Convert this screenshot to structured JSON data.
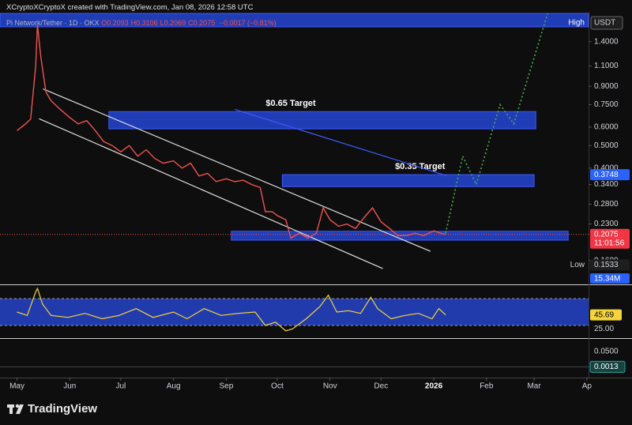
{
  "header": {
    "credit": "XCryptoXCryptoX created with TradingView.com, Jan 08, 2026 12:58 UTC",
    "symbol": "Pi Network/Tether · 1D · OKX",
    "ohlc": [
      "O0.2093",
      "H0.3106",
      "L0.2069",
      "C0.2075"
    ],
    "change": "−0.0017 (−0.81%)"
  },
  "footer": {
    "brand": "TradingView"
  },
  "chart_data": {
    "type": "line",
    "log_scale": true,
    "color": "#ef5350",
    "currency": "USDT",
    "x": [
      0,
      5,
      8,
      11,
      12,
      14,
      17,
      20,
      25,
      31,
      36,
      41,
      46,
      51,
      56,
      61,
      66,
      71,
      76,
      81,
      86,
      92,
      97,
      102,
      107,
      112,
      117,
      123,
      128,
      133,
      138,
      143,
      146,
      150,
      153,
      158,
      161,
      166,
      171,
      176,
      180,
      184,
      189,
      194,
      199,
      204,
      209,
      214,
      219,
      224,
      229,
      234,
      239,
      245,
      249,
      252
    ],
    "values": [
      0.58,
      0.62,
      0.65,
      1.1,
      1.65,
      1.2,
      0.85,
      0.78,
      0.72,
      0.66,
      0.62,
      0.64,
      0.58,
      0.52,
      0.5,
      0.47,
      0.5,
      0.45,
      0.48,
      0.44,
      0.42,
      0.43,
      0.4,
      0.42,
      0.37,
      0.38,
      0.35,
      0.36,
      0.35,
      0.355,
      0.34,
      0.33,
      0.26,
      0.26,
      0.25,
      0.24,
      0.2,
      0.21,
      0.2,
      0.21,
      0.27,
      0.24,
      0.225,
      0.23,
      0.22,
      0.245,
      0.27,
      0.235,
      0.22,
      0.205,
      0.205,
      0.21,
      0.205,
      0.215,
      0.21,
      0.2075
    ],
    "ylim": [
      0.1265,
      1.85
    ],
    "yticks": [
      {
        "value": 1.4,
        "label": "1.4000"
      },
      {
        "value": 1.1,
        "label": "1.1000"
      },
      {
        "value": 0.9,
        "label": "0.9000"
      },
      {
        "value": 0.75,
        "label": "0.7500"
      },
      {
        "value": 0.6,
        "label": "0.6000"
      },
      {
        "value": 0.5,
        "label": "0.5000"
      },
      {
        "value": 0.4,
        "label": "0.4000"
      },
      {
        "value": 0.34,
        "label": "0.3400"
      },
      {
        "value": 0.28,
        "label": "0.2800"
      },
      {
        "value": 0.23,
        "label": "0.2300"
      },
      {
        "value": 0.16,
        "label": "0.1600"
      }
    ],
    "xlim": [
      -10,
      336
    ],
    "xticks": [
      {
        "value": 0,
        "label": "May"
      },
      {
        "value": 31,
        "label": "Jun"
      },
      {
        "value": 61,
        "label": "Jul"
      },
      {
        "value": 92,
        "label": "Aug"
      },
      {
        "value": 123,
        "label": "Sep"
      },
      {
        "value": 153,
        "label": "Oct"
      },
      {
        "value": 184,
        "label": "Nov"
      },
      {
        "value": 214,
        "label": "Dec"
      },
      {
        "value": 245,
        "label": "2026"
      },
      {
        "value": 276,
        "label": "Feb"
      },
      {
        "value": 304,
        "label": "Mar"
      },
      {
        "value": 335,
        "label": "Ap"
      }
    ],
    "zones": [
      {
        "x": [
          -10,
          336
        ],
        "y": [
          1.62,
          1.85
        ]
      },
      {
        "x": [
          54,
          305
        ],
        "y": [
          0.59,
          0.7
        ],
        "label": "$0.65 Target"
      },
      {
        "x": [
          156,
          304
        ],
        "y": [
          0.333,
          0.375
        ],
        "label": "$0.35 Target"
      },
      {
        "x": [
          126,
          324
        ],
        "y": [
          0.196,
          0.214
        ]
      }
    ],
    "trendlines": [
      {
        "x": [
          15.3,
          243
        ],
        "values": [
          0.876,
          0.1756
        ],
        "color": "#e0e0e0"
      },
      {
        "x": [
          13,
          215
        ],
        "values": [
          0.652,
          0.148
        ],
        "color": "#e0e0e0"
      },
      {
        "x": [
          128,
          252.5
        ],
        "values": [
          0.716,
          0.371
        ],
        "color": "#3d5afe"
      }
    ],
    "projection": {
      "x": [
        252,
        262,
        270,
        284,
        292,
        312
      ],
      "values": [
        0.21,
        0.45,
        0.34,
        0.75,
        0.62,
        1.85
      ],
      "color": "#4caf50"
    },
    "last_price": 0.2075,
    "countdown": "11:01:56",
    "zone_price": 0.3748,
    "high_label": "High",
    "low_label": "Low",
    "low": 0.1533,
    "volume_label": "15.34M"
  },
  "rsi": {
    "x": [
      0,
      6,
      11,
      12,
      15,
      20,
      30,
      40,
      50,
      60,
      70,
      80,
      92,
      100,
      110,
      120,
      130,
      140,
      146,
      152,
      158,
      162,
      170,
      178,
      183,
      188,
      195,
      202,
      208,
      212,
      220,
      228,
      236,
      244,
      248,
      252
    ],
    "values": [
      50,
      45,
      80,
      85,
      62,
      45,
      42,
      48,
      40,
      45,
      55,
      42,
      50,
      40,
      55,
      45,
      48,
      50,
      30,
      35,
      22,
      25,
      40,
      58,
      75,
      50,
      52,
      48,
      72,
      55,
      40,
      45,
      48,
      40,
      55,
      45.69
    ],
    "ylim": [
      11.2,
      88.8
    ],
    "band": [
      30,
      70
    ],
    "yticks": [
      {
        "value": 25,
        "label": "25.00"
      }
    ],
    "last": 45.69,
    "color": "#f5d33b"
  },
  "macd": {
    "ylim": [
      -0.033,
      0.088
    ],
    "yticks": [
      {
        "value": 0.05,
        "label": "0.0500"
      }
    ],
    "last": 0.0013
  }
}
